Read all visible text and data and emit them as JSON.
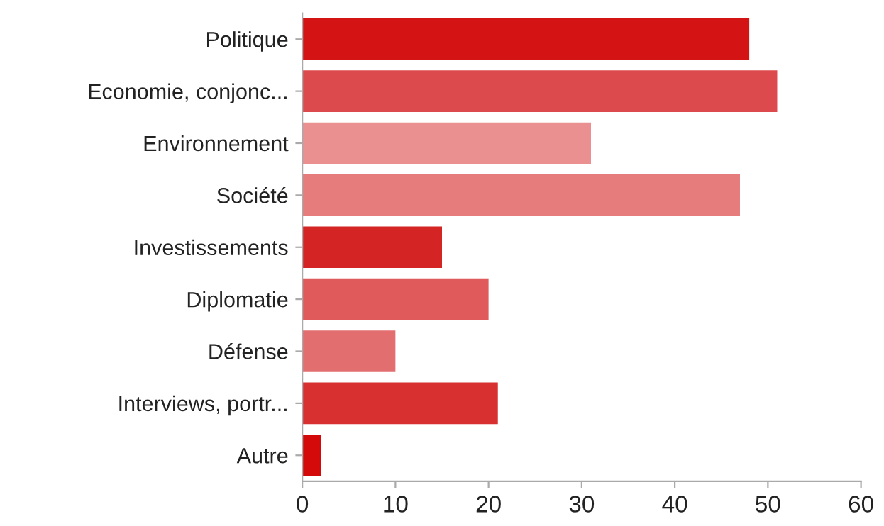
{
  "chart_data": {
    "type": "bar",
    "orientation": "horizontal",
    "categories": [
      "Politique",
      "Economie, conjonc...",
      "Environnement",
      "Société",
      "Investissements",
      "Diplomatie",
      "Défense",
      "Interviews, portr...",
      "Autre"
    ],
    "values": [
      48,
      51,
      31,
      47,
      15,
      20,
      10,
      21,
      2
    ],
    "colors": [
      "#d41414",
      "#dd4a4d",
      "#ea9090",
      "#e67c7c",
      "#d42424",
      "#e05a5c",
      "#e36e70",
      "#d83030",
      "#d40a0a"
    ],
    "xlim": [
      0,
      60
    ],
    "xticks": [
      0,
      10,
      20,
      30,
      40,
      50,
      60
    ],
    "grid": false,
    "legend": false
  }
}
